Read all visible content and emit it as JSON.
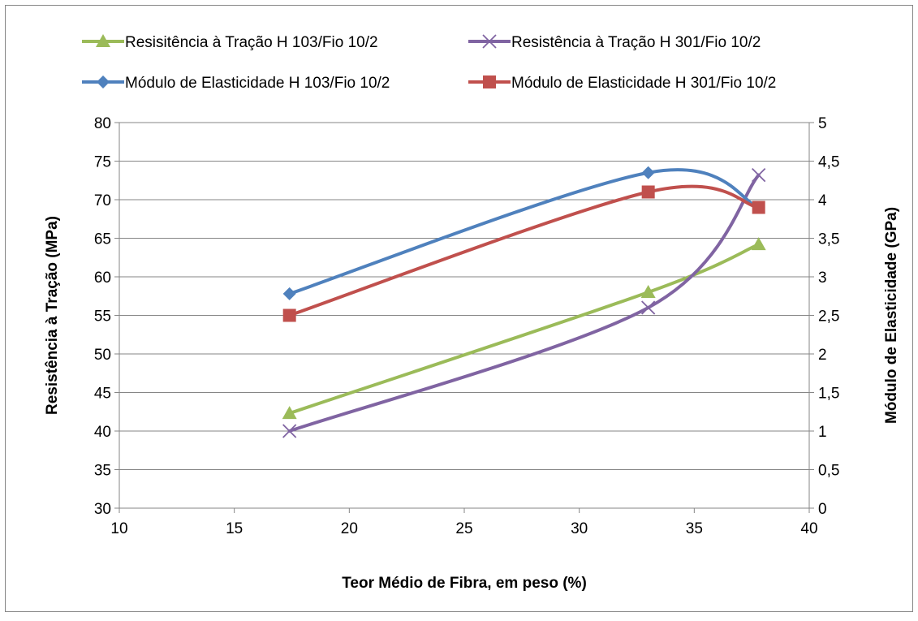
{
  "chart_data": {
    "type": "line",
    "smooth": true,
    "title": "",
    "xlabel": "Teor Médio de Fibra, em peso (%)",
    "ylabel": "Resistência à Tração (MPa)",
    "y2label": "Módulo de Elasticidade (GPa)",
    "xlim": [
      10,
      40
    ],
    "ylim": [
      30,
      80
    ],
    "y2lim": [
      0,
      5
    ],
    "x_ticks": [
      "10",
      "15",
      "20",
      "25",
      "30",
      "35",
      "40"
    ],
    "y_ticks": [
      "30",
      "35",
      "40",
      "45",
      "50",
      "55",
      "60",
      "65",
      "70",
      "75",
      "80"
    ],
    "y2_ticks": [
      "0",
      "0,5",
      "1",
      "1,5",
      "2",
      "2,5",
      "3",
      "3,5",
      "4",
      "4,5",
      "5"
    ],
    "grid": "horizontal",
    "legend_position": "top",
    "series": [
      {
        "name": "Resisitência à Tração H 103/Fio 10/2",
        "axis": "left",
        "color": "#9BBB59",
        "marker": "triangle",
        "x": [
          17.4,
          33.0,
          37.8
        ],
        "y": [
          42.3,
          58.0,
          64.2
        ]
      },
      {
        "name": "Resistência à Tração H 301/Fio 10/2",
        "axis": "left",
        "color": "#8064A2",
        "marker": "x",
        "x": [
          17.4,
          33.0,
          37.8
        ],
        "y": [
          40.0,
          56.0,
          73.2
        ]
      },
      {
        "name": "Módulo de Elasticidade H 103/Fio 10/2",
        "axis": "right",
        "color": "#4F81BD",
        "marker": "diamond",
        "x": [
          17.4,
          33.0,
          37.8
        ],
        "y": [
          2.78,
          4.35,
          3.9
        ]
      },
      {
        "name": "Módulo de Elasticidade H 301/Fio 10/2",
        "axis": "right",
        "color": "#C0504D",
        "marker": "square",
        "x": [
          17.4,
          33.0,
          37.8
        ],
        "y": [
          2.5,
          4.1,
          3.9
        ]
      }
    ]
  }
}
